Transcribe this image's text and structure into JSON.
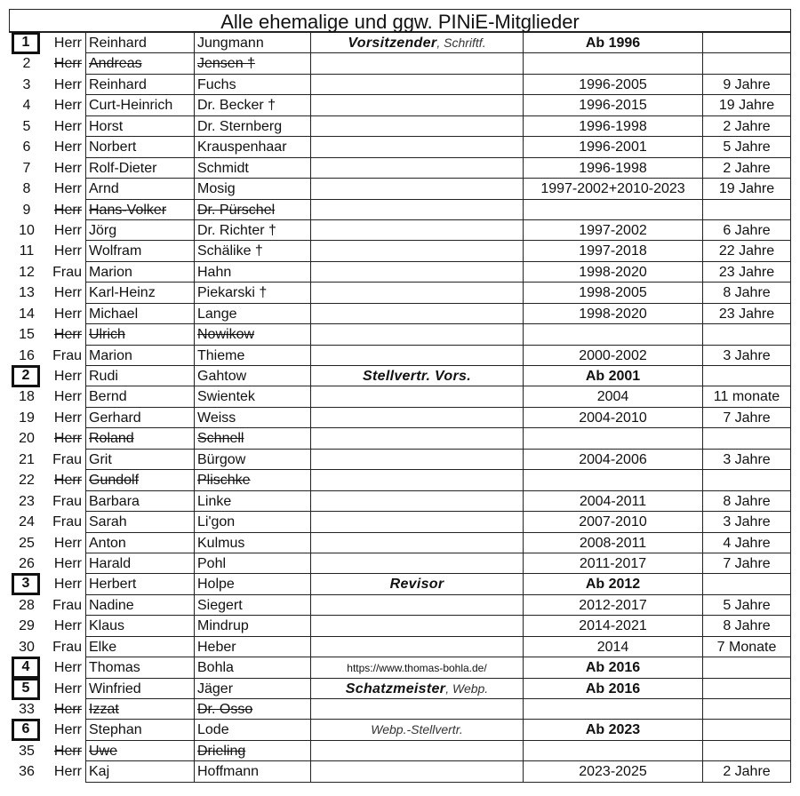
{
  "title": "Alle ehemalige und ggw. PINiE-Mitglieder",
  "rows": [
    {
      "num": "1",
      "boxed": true,
      "sal": "Herr",
      "first": "Reinhard",
      "last": "Jungmann",
      "role_bold": "Vorsitzender",
      "role_rest": ", Schriftf.",
      "period": "Ab 1996",
      "period_bold": true,
      "dur": ""
    },
    {
      "num": "2",
      "sal": "Herr",
      "first": "Andreas",
      "last": "Jensen †",
      "struck": true,
      "period": "",
      "dur": ""
    },
    {
      "num": "3",
      "sal": "Herr",
      "first": "Reinhard",
      "last": "Fuchs",
      "period": "1996-2005",
      "dur": "9 Jahre"
    },
    {
      "num": "4",
      "sal": "Herr",
      "first": "Curt-Heinrich",
      "last": "Dr. Becker †",
      "period": "1996-2015",
      "dur": "19 Jahre"
    },
    {
      "num": "5",
      "sal": "Herr",
      "first": "Horst",
      "last": "Dr. Sternberg",
      "period": "1996-1998",
      "dur": "2 Jahre"
    },
    {
      "num": "6",
      "sal": "Herr",
      "first": "Norbert",
      "last": "Krauspenhaar",
      "period": "1996-2001",
      "dur": "5 Jahre"
    },
    {
      "num": "7",
      "sal": "Herr",
      "first": "Rolf-Dieter",
      "last": "Schmidt",
      "period": "1996-1998",
      "dur": "2 Jahre"
    },
    {
      "num": "8",
      "sal": "Herr",
      "first": "Arnd",
      "last": "Mosig",
      "period": "1997-2002+2010-2023",
      "dur": "19 Jahre"
    },
    {
      "num": "9",
      "sal": "Herr",
      "first": "Hans-Volker",
      "last": "Dr. Pürschel",
      "struck": true,
      "period": "",
      "dur": ""
    },
    {
      "num": "10",
      "sal": "Herr",
      "first": "Jörg",
      "last": "Dr. Richter †",
      "period": "1997-2002",
      "dur": "6 Jahre"
    },
    {
      "num": "11",
      "sal": "Herr",
      "first": "Wolfram",
      "last": "Schälike †",
      "period": "1997-2018",
      "dur": "22 Jahre"
    },
    {
      "num": "12",
      "sal": "Frau",
      "first": "Marion",
      "last": "Hahn",
      "period": "1998-2020",
      "dur": "23 Jahre"
    },
    {
      "num": "13",
      "sal": "Herr",
      "first": "Karl-Heinz",
      "last": "Piekarski †",
      "period": "1998-2005",
      "dur": "8 Jahre"
    },
    {
      "num": "14",
      "sal": "Herr",
      "first": "Michael",
      "last": "Lange",
      "period": "1998-2020",
      "dur": "23 Jahre"
    },
    {
      "num": "15",
      "sal": "Herr",
      "first": "Ulrich",
      "last": "Nowikow",
      "struck": true,
      "period": "",
      "dur": ""
    },
    {
      "num": "16",
      "sal": "Frau",
      "first": "Marion",
      "last": "Thieme",
      "period": "2000-2002",
      "dur": "3 Jahre"
    },
    {
      "num": "2",
      "boxed": true,
      "sal": "Herr",
      "first": "Rudi",
      "last": "Gahtow",
      "role_bold": "Stellvertr. Vors.",
      "period": "Ab 2001",
      "period_bold": true,
      "dur": ""
    },
    {
      "num": "18",
      "sal": "Herr",
      "first": "Bernd",
      "last": "Swientek",
      "period": "2004",
      "dur": "11 monate"
    },
    {
      "num": "19",
      "sal": "Herr",
      "first": "Gerhard",
      "last": "Weiss",
      "period": "2004-2010",
      "dur": "7 Jahre"
    },
    {
      "num": "20",
      "sal": "Herr",
      "first": "Roland",
      "last": "Schnell",
      "struck": true,
      "period": "",
      "dur": ""
    },
    {
      "num": "21",
      "sal": "Frau",
      "first": "Grit",
      "last": "Bürgow",
      "period": "2004-2006",
      "dur": "3 Jahre"
    },
    {
      "num": "22",
      "sal": "Herr",
      "first": "Gundolf",
      "last": "Plischke",
      "struck": true,
      "period": "",
      "dur": ""
    },
    {
      "num": "23",
      "sal": "Frau",
      "first": "Barbara",
      "last": "Linke",
      "period": "2004-2011",
      "dur": "8 Jahre"
    },
    {
      "num": "24",
      "sal": "Frau",
      "first": "Sarah",
      "last": "Li'gon",
      "period": "2007-2010",
      "dur": "3 Jahre"
    },
    {
      "num": "25",
      "sal": "Herr",
      "first": "Anton",
      "last": "Kulmus",
      "period": "2008-2011",
      "dur": "4 Jahre"
    },
    {
      "num": "26",
      "sal": "Herr",
      "first": "Harald",
      "last": "Pohl",
      "period": "2011-2017",
      "dur": "7 Jahre"
    },
    {
      "num": "3",
      "boxed": true,
      "sal": "Herr",
      "first": "Herbert",
      "last": "Holpe",
      "role_bold": "Revisor",
      "period": "Ab 2012",
      "period_bold": true,
      "dur": ""
    },
    {
      "num": "28",
      "sal": "Frau",
      "first": "Nadine",
      "last": "Siegert",
      "period": "2012-2017",
      "dur": "5 Jahre"
    },
    {
      "num": "29",
      "sal": "Herr",
      "first": "Klaus",
      "last": "Mindrup",
      "period": "2014-2021",
      "dur": "8 Jahre"
    },
    {
      "num": "30",
      "sal": "Frau",
      "first": "Elke",
      "last": "Heber",
      "period": "2014",
      "dur": "7 Monate"
    },
    {
      "num": "4",
      "boxed": true,
      "sal": "Herr",
      "first": "Thomas",
      "last": "Bohla",
      "role_url": "https://www.thomas-bohla.de/",
      "period": "Ab 2016",
      "period_bold": true,
      "dur": ""
    },
    {
      "num": "5",
      "boxed": true,
      "sal": "Herr",
      "first": "Winfried",
      "last": "Jäger",
      "role_bold": "Schatzmeister",
      "role_rest": ", Webp.",
      "period": "Ab 2016",
      "period_bold": true,
      "dur": ""
    },
    {
      "num": "33",
      "sal": "Herr",
      "first": "Izzat",
      "last": "Dr. Osso",
      "struck": true,
      "period": "",
      "dur": ""
    },
    {
      "num": "6",
      "boxed": true,
      "sal": "Herr",
      "first": "Stephan",
      "last": "Lode",
      "role_rest": "Webp.-Stellvertr.",
      "period": "Ab 2023",
      "period_bold": true,
      "dur": ""
    },
    {
      "num": "35",
      "sal": "Herr",
      "first": "Uwe",
      "last": "Drieling",
      "struck": true,
      "period": "",
      "dur": ""
    },
    {
      "num": "36",
      "sal": "Herr",
      "first": "Kaj",
      "last": "Hoffmann",
      "period": "2023-2025",
      "dur": "2 Jahre"
    }
  ]
}
